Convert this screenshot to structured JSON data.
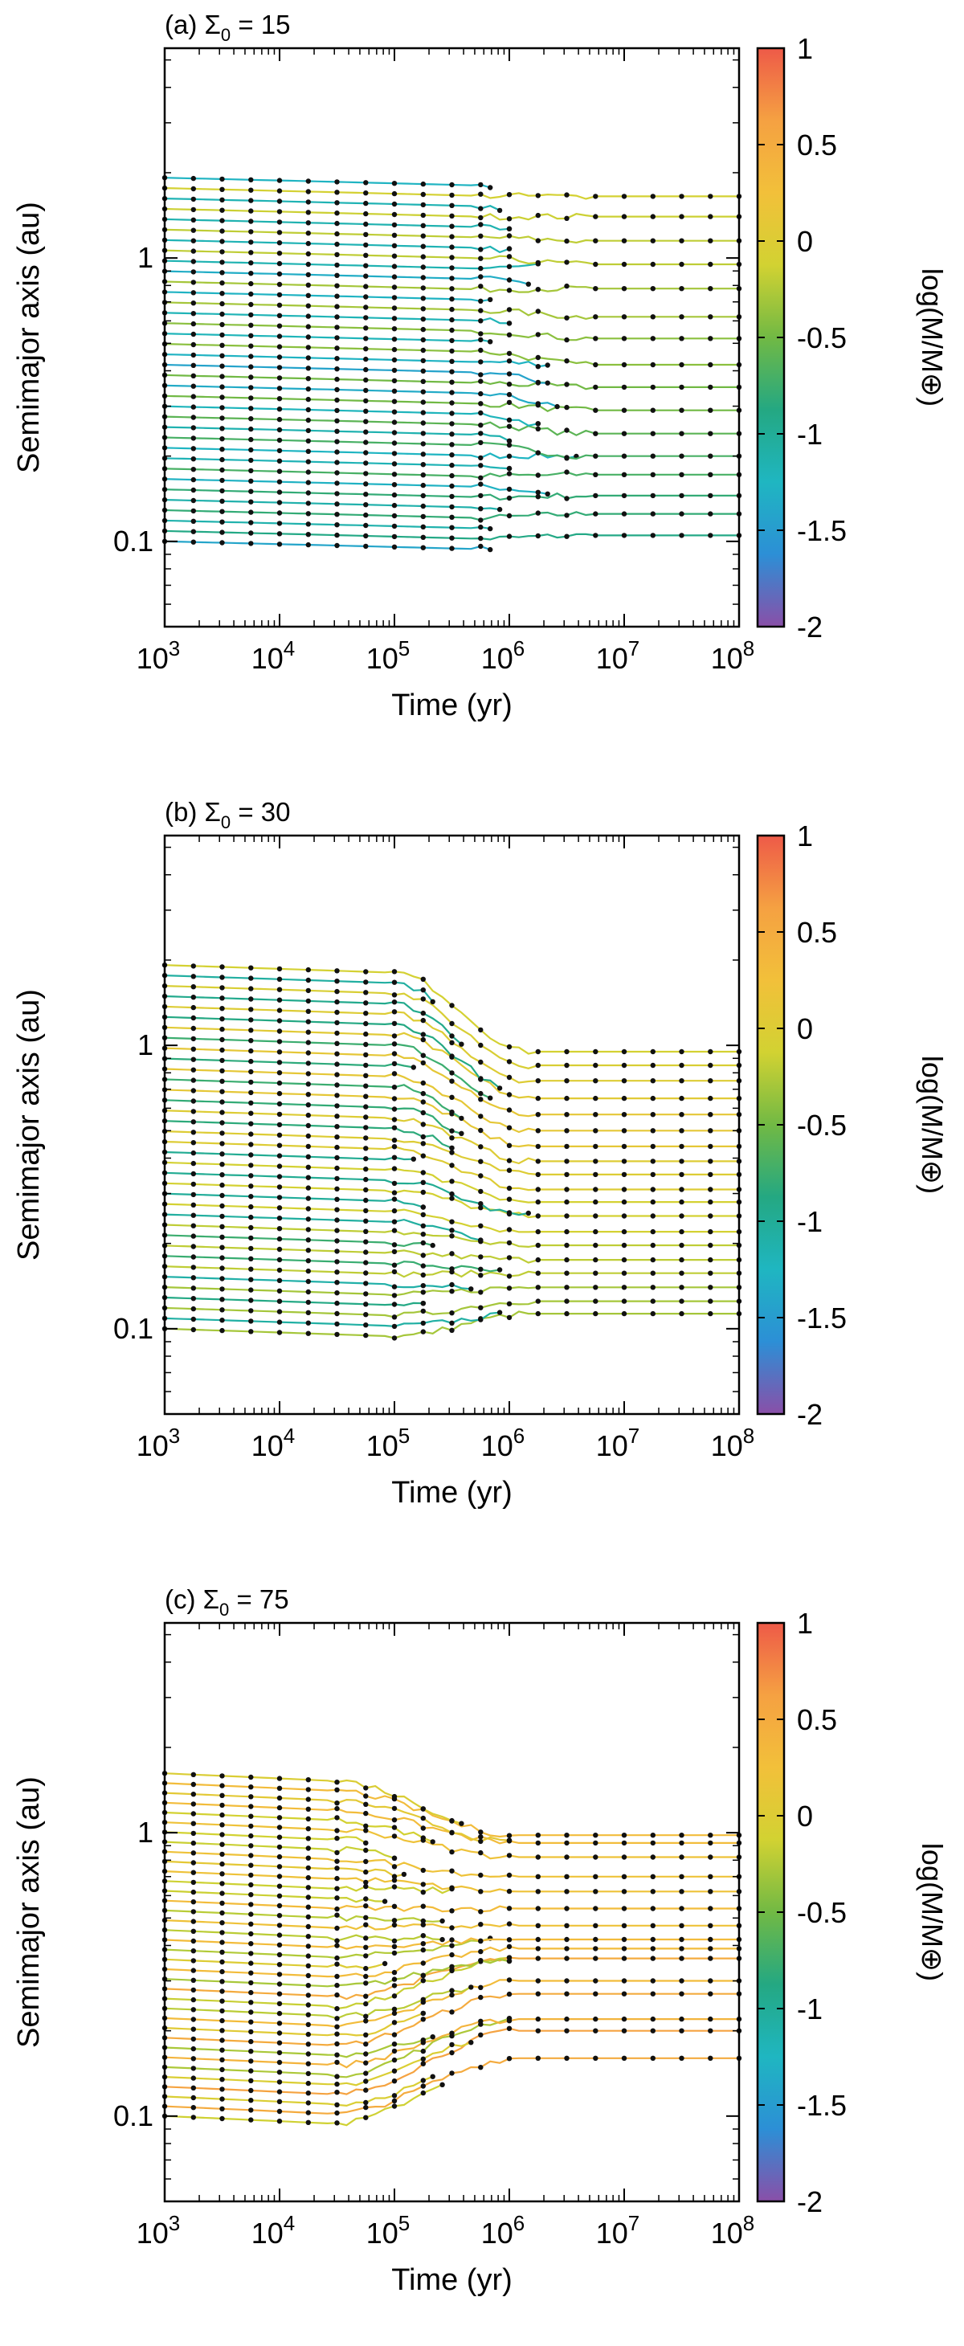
{
  "figure": {
    "colorbar_ticks": [
      "1",
      "0.5",
      "0",
      "-0.5",
      "-1",
      "-1.5",
      "-2"
    ],
    "colorbar_label": "log(M/M⊕)",
    "colorbar_range": [
      -2,
      1
    ],
    "colormap": [
      "#8a4fa8",
      "#2c8fd6",
      "#1fb6c1",
      "#24a882",
      "#71b944",
      "#d2d232",
      "#f2c03a",
      "#f5a142",
      "#ee5a48"
    ]
  },
  "chart_data": [
    {
      "type": "line",
      "panel_label": "(a) Σ",
      "panel_sub": "0",
      "panel_value": " = 15",
      "title": "(a) Σ_0 = 15",
      "xlabel": "Time (yr)",
      "ylabel": "Semimajor axis (au)",
      "xscale": "log",
      "yscale": "log",
      "xlim": [
        1000,
        100000000
      ],
      "ylim": [
        0.05,
        5.5
      ],
      "xtick_values": [
        1000,
        10000,
        100000,
        1000000,
        10000000,
        100000000
      ],
      "xtick_labels": [
        "10",
        "10",
        "10",
        "10",
        "10",
        "10"
      ],
      "xtick_exponents": [
        "3",
        "4",
        "5",
        "6",
        "7",
        "8"
      ],
      "ytick_values": [
        0.1,
        1
      ],
      "ytick_labels": [
        "0.1",
        "1"
      ],
      "n_initial": 36,
      "a_initial": [
        0.1,
        1.92
      ],
      "initial_mass_log": -1.5,
      "onset_time": 500000,
      "end_time": 5000000,
      "final_axes": [
        0.105,
        0.125,
        0.145,
        0.172,
        0.2,
        0.24,
        0.29,
        0.35,
        0.42,
        0.52,
        0.62,
        0.78,
        0.95,
        1.15,
        1.4,
        1.65
      ],
      "final_mass_logs": [
        -0.9,
        -0.8,
        -0.8,
        -0.7,
        -0.7,
        -0.6,
        -0.5,
        -0.5,
        -0.4,
        -0.4,
        -0.3,
        -0.3,
        -0.2,
        -0.2,
        -0.15,
        -0.1
      ]
    },
    {
      "type": "line",
      "panel_label": "(b) Σ",
      "panel_sub": "0",
      "panel_value": " = 30",
      "title": "(b) Σ_0 = 30",
      "xlabel": "Time (yr)",
      "ylabel": "Semimajor axis (au)",
      "xscale": "log",
      "yscale": "log",
      "xlim": [
        1000,
        100000000
      ],
      "ylim": [
        0.05,
        5.5
      ],
      "xtick_values": [
        1000,
        10000,
        100000,
        1000000,
        10000000,
        100000000
      ],
      "xtick_labels": [
        "10",
        "10",
        "10",
        "10",
        "10",
        "10"
      ],
      "xtick_exponents": [
        "3",
        "4",
        "5",
        "6",
        "7",
        "8"
      ],
      "ytick_values": [
        0.1,
        1
      ],
      "ytick_labels": [
        "0.1",
        "1"
      ],
      "n_initial": 36,
      "a_initial": [
        0.1,
        1.92
      ],
      "initial_mass_log": -1.1,
      "onset_time": 100000,
      "end_time": 1500000,
      "final_axes": [
        0.113,
        0.125,
        0.14,
        0.157,
        0.175,
        0.197,
        0.22,
        0.25,
        0.28,
        0.31,
        0.35,
        0.39,
        0.44,
        0.5,
        0.57,
        0.65,
        0.75,
        0.85,
        0.95
      ],
      "final_mass_logs": [
        -0.3,
        -0.3,
        -0.3,
        -0.2,
        -0.2,
        -0.2,
        -0.1,
        -0.1,
        -0.1,
        0,
        0,
        0,
        0.1,
        0.1,
        0.1,
        0.05,
        0.0,
        -0.05,
        -0.1
      ]
    },
    {
      "type": "line",
      "panel_label": "(c) Σ",
      "panel_sub": "0",
      "panel_value": " = 75",
      "title": "(c) Σ_0 = 75",
      "xlabel": "Time (yr)",
      "ylabel": "Semimajor axis (au)",
      "xscale": "log",
      "yscale": "log",
      "xlim": [
        1000,
        100000000
      ],
      "ylim": [
        0.05,
        5.5
      ],
      "xtick_values": [
        1000,
        10000,
        100000,
        1000000,
        10000000,
        100000000
      ],
      "xtick_labels": [
        "10",
        "10",
        "10",
        "10",
        "10",
        "10"
      ],
      "xtick_exponents": [
        "3",
        "4",
        "5",
        "6",
        "7",
        "8"
      ],
      "ytick_values": [
        0.1,
        1
      ],
      "ytick_labels": [
        "0.1",
        "1"
      ],
      "n_initial": 36,
      "a_initial": [
        0.1,
        1.62
      ],
      "initial_mass_log": -0.3,
      "onset_time": 30000,
      "end_time": 1200000,
      "final_axes": [
        0.16,
        0.2,
        0.22,
        0.27,
        0.3,
        0.36,
        0.39,
        0.42,
        0.47,
        0.54,
        0.62,
        0.7,
        0.82,
        0.92,
        0.98
      ],
      "final_mass_logs": [
        0.5,
        0.6,
        0.4,
        0.5,
        0.3,
        0.5,
        0.3,
        0.3,
        0.2,
        0.3,
        0.2,
        0.2,
        0.2,
        0.3,
        0.3
      ]
    }
  ]
}
